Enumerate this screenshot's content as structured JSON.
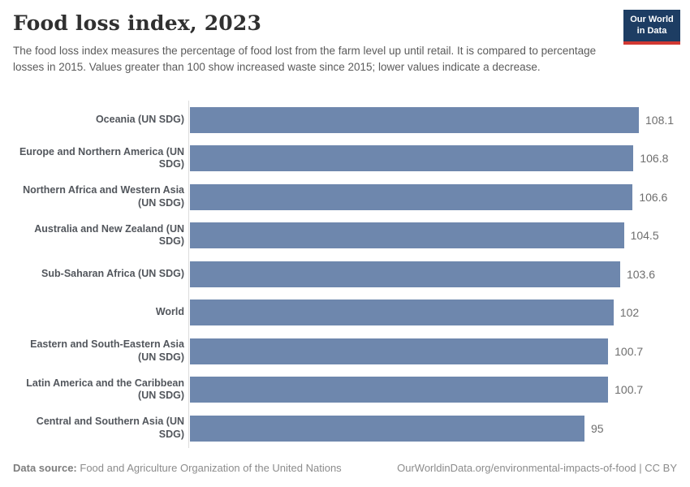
{
  "header": {
    "title": "Food loss index, 2023",
    "subtitle": "The food loss index measures the percentage of food lost from the farm level up until retail. It is compared to percentage losses in 2015. Values greater than 100 show increased waste since 2015; lower values indicate a decrease.",
    "logo": {
      "line1": "Our World",
      "line2": "in Data",
      "bg_color": "#1d3d63",
      "accent_color": "#d13832"
    }
  },
  "chart_data": {
    "type": "bar",
    "orientation": "horizontal",
    "title": "Food loss index, 2023",
    "categories": [
      "Oceania (UN SDG)",
      "Europe and Northern America (UN SDG)",
      "Northern Africa and Western Asia (UN SDG)",
      "Australia and New Zealand (UN SDG)",
      "Sub-Saharan Africa (UN SDG)",
      "World",
      "Eastern and South-Eastern Asia (UN SDG)",
      "Latin America and the Caribbean (UN SDG)",
      "Central and Southern Asia (UN SDG)"
    ],
    "values": [
      108.1,
      106.8,
      106.6,
      104.5,
      103.6,
      102,
      100.7,
      100.7,
      95
    ],
    "value_labels": [
      "108.1",
      "106.8",
      "106.6",
      "104.5",
      "103.6",
      "102",
      "100.7",
      "100.7",
      "95"
    ],
    "xlabel": "",
    "ylabel": "",
    "xlim": [
      0,
      108.1
    ],
    "grid": false,
    "legend": "none",
    "bar_color": "#6e87ad",
    "axis_color": "#dcdcdc"
  },
  "footer": {
    "source_label": "Data source:",
    "source_value": "Food and Agriculture Organization of the United Nations",
    "link_text": "OurWorldinData.org/environmental-impacts-of-food | CC BY"
  }
}
